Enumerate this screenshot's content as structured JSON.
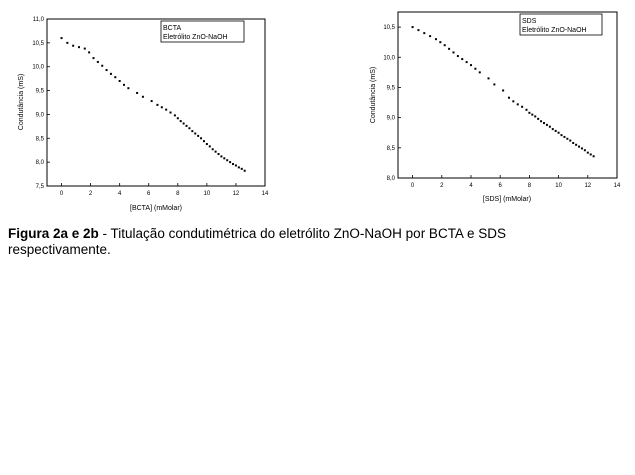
{
  "caption": {
    "bold": "Figura 2a e 2b",
    "text": " - Titulação condutimétrica do eletrólito ZnO-NaOH por BCTA e SDS respectivamente."
  },
  "chart_data": [
    {
      "type": "scatter",
      "xlabel": "[BCTA] (mMolar)",
      "ylabel": "Condutância (mS)",
      "legend": [
        "BCTA",
        "Eletrólito ZnO-NaOH"
      ],
      "legend_position": "top-right",
      "xlim": [
        -1,
        14
      ],
      "ylim": [
        7.5,
        11.0
      ],
      "xticks": [
        0,
        2,
        4,
        6,
        8,
        10,
        12,
        14
      ],
      "yticks": [
        7.5,
        8.0,
        8.5,
        9.0,
        9.5,
        10.0,
        10.5,
        11.0
      ],
      "ytick_labels": [
        "7,5",
        "8,0",
        "8,5",
        "9,0",
        "9,5",
        "10,0",
        "10,5",
        "11,0"
      ],
      "series": [
        {
          "x": [
            0,
            0.4,
            0.8,
            1.2,
            1.6,
            1.9,
            2.2,
            2.5,
            2.8,
            3.1,
            3.4,
            3.7,
            4.0,
            4.3,
            4.6,
            5.2,
            5.6,
            6.2,
            6.6,
            6.9,
            7.2,
            7.5,
            7.8,
            8.0,
            8.2,
            8.4,
            8.6,
            8.8,
            9.0,
            9.2,
            9.4,
            9.6,
            9.8,
            10.0,
            10.2,
            10.4,
            10.6,
            10.8,
            11.0,
            11.2,
            11.4,
            11.6,
            11.8,
            12.0,
            12.2,
            12.4,
            12.6
          ],
          "y": [
            10.6,
            10.5,
            10.44,
            10.41,
            10.38,
            10.3,
            10.18,
            10.1,
            10.02,
            9.93,
            9.85,
            9.78,
            9.7,
            9.62,
            9.55,
            9.45,
            9.37,
            9.28,
            9.2,
            9.15,
            9.1,
            9.04,
            8.98,
            8.92,
            8.86,
            8.81,
            8.76,
            8.71,
            8.65,
            8.6,
            8.55,
            8.5,
            8.44,
            8.38,
            8.33,
            8.27,
            8.22,
            8.17,
            8.12,
            8.08,
            8.04,
            8.0,
            7.96,
            7.93,
            7.89,
            7.86,
            7.82
          ]
        }
      ]
    },
    {
      "type": "scatter",
      "xlabel": "[SDS] (mMolar)",
      "ylabel": "Condutância (mS)",
      "legend": [
        "SDS",
        "Eletrólito ZnO-NaOH"
      ],
      "legend_position": "top-right",
      "xlim": [
        -1,
        14
      ],
      "ylim": [
        8.0,
        10.75
      ],
      "xticks": [
        0,
        2,
        4,
        6,
        8,
        10,
        12,
        14
      ],
      "yticks": [
        8.0,
        8.5,
        9.0,
        9.5,
        10.0,
        10.5
      ],
      "ytick_labels": [
        "8,0",
        "8,5",
        "9,0",
        "9,5",
        "10,0",
        "10,5"
      ],
      "series": [
        {
          "x": [
            0,
            0.4,
            0.8,
            1.2,
            1.6,
            1.9,
            2.2,
            2.5,
            2.8,
            3.1,
            3.4,
            3.7,
            4.0,
            4.3,
            4.6,
            5.2,
            5.6,
            6.2,
            6.6,
            6.9,
            7.2,
            7.5,
            7.8,
            8.0,
            8.2,
            8.4,
            8.6,
            8.8,
            9.0,
            9.2,
            9.4,
            9.6,
            9.8,
            10.0,
            10.2,
            10.4,
            10.6,
            10.8,
            11.0,
            11.2,
            11.4,
            11.6,
            11.8,
            12.0,
            12.2,
            12.4
          ],
          "y": [
            10.5,
            10.45,
            10.4,
            10.35,
            10.3,
            10.25,
            10.2,
            10.14,
            10.08,
            10.02,
            9.97,
            9.92,
            9.87,
            9.81,
            9.75,
            9.65,
            9.55,
            9.45,
            9.33,
            9.27,
            9.22,
            9.18,
            9.13,
            9.08,
            9.05,
            9.02,
            8.98,
            8.94,
            8.91,
            8.88,
            8.85,
            8.81,
            8.78,
            8.75,
            8.71,
            8.68,
            8.65,
            8.62,
            8.58,
            8.55,
            8.52,
            8.49,
            8.46,
            8.42,
            8.39,
            8.36
          ]
        }
      ]
    }
  ]
}
